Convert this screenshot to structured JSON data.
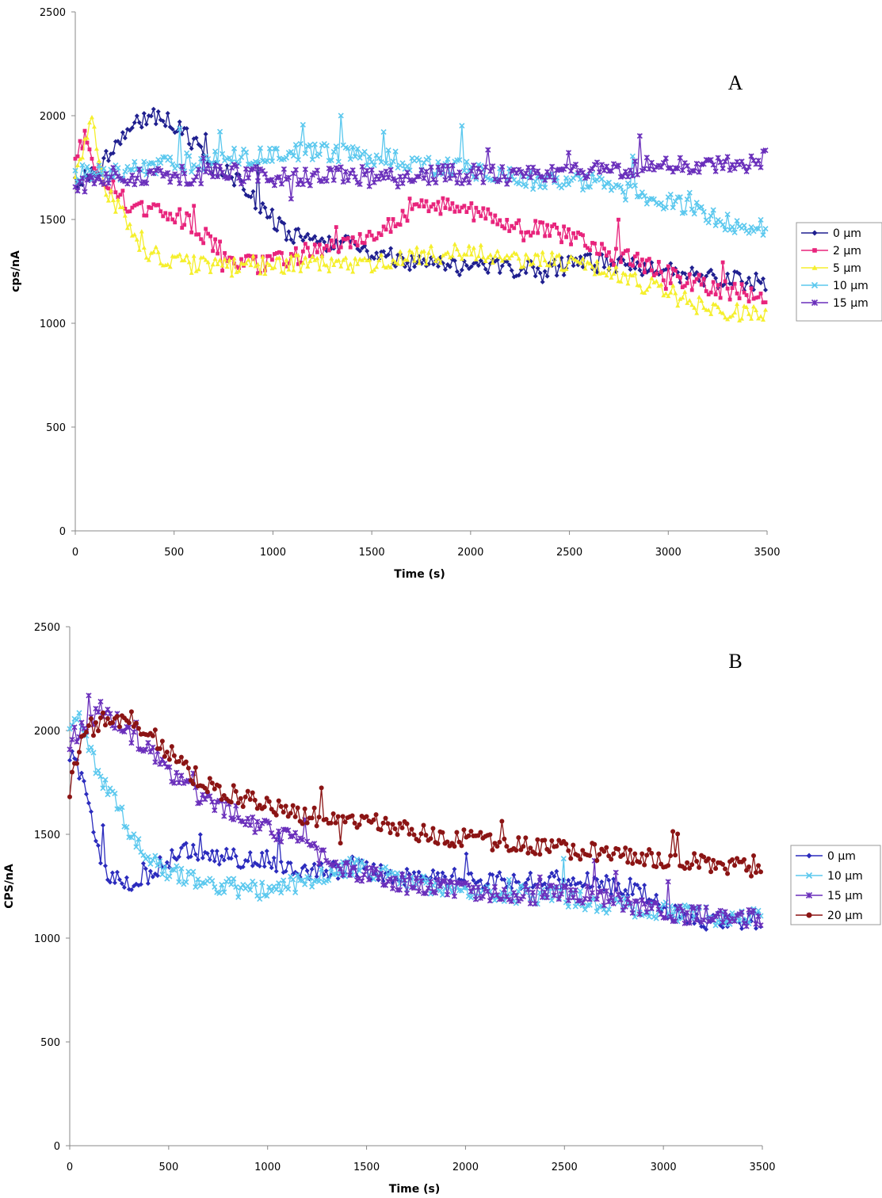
{
  "chart_data": [
    {
      "type": "line",
      "panel_label": "A",
      "xlabel": "Time (s)",
      "ylabel": "cps/nA",
      "xlim": [
        0,
        3500
      ],
      "ylim": [
        0,
        2500
      ],
      "x_ticks": [
        0,
        500,
        1000,
        1500,
        2000,
        2500,
        3000,
        3500
      ],
      "y_ticks": [
        0,
        500,
        1000,
        1500,
        2000,
        2500
      ],
      "grid": false,
      "legend_position": "right",
      "series": [
        {
          "name": "0 µm",
          "color": "#1f1f8f",
          "marker": "diamond",
          "x": [
            0,
            100,
            200,
            300,
            400,
            500,
            600,
            700,
            800,
            900,
            1000,
            1100,
            1200,
            1300,
            1400,
            1500,
            1600,
            1700,
            1800,
            1900,
            2000,
            2100,
            2200,
            2300,
            2400,
            2500,
            2600,
            2700,
            2800,
            2900,
            3000,
            3100,
            3200,
            3300,
            3400,
            3500
          ],
          "y": [
            1690,
            1720,
            1850,
            1960,
            1990,
            1950,
            1870,
            1750,
            1700,
            1600,
            1500,
            1420,
            1390,
            1390,
            1370,
            1340,
            1320,
            1300,
            1290,
            1280,
            1270,
            1270,
            1260,
            1260,
            1270,
            1280,
            1290,
            1290,
            1280,
            1270,
            1250,
            1230,
            1220,
            1210,
            1200,
            1190
          ]
        },
        {
          "name": "2 µm",
          "color": "#e8247c",
          "marker": "square",
          "x": [
            0,
            50,
            100,
            200,
            300,
            400,
            500,
            600,
            700,
            800,
            900,
            1000,
            1100,
            1200,
            1300,
            1400,
            1500,
            1600,
            1700,
            1800,
            1900,
            2000,
            2100,
            2200,
            2300,
            2400,
            2500,
            2600,
            2700,
            2800,
            2900,
            3000,
            3100,
            3200,
            3300,
            3400,
            3500
          ],
          "y": [
            1780,
            1920,
            1760,
            1640,
            1550,
            1540,
            1520,
            1470,
            1380,
            1290,
            1280,
            1290,
            1320,
            1350,
            1370,
            1400,
            1430,
            1480,
            1540,
            1580,
            1560,
            1540,
            1510,
            1480,
            1460,
            1440,
            1420,
            1380,
            1340,
            1310,
            1280,
            1240,
            1210,
            1180,
            1160,
            1140,
            1120
          ]
        },
        {
          "name": "5 µm",
          "color": "#f5ef2d",
          "marker": "triangle",
          "x": [
            0,
            50,
            80,
            150,
            250,
            300,
            400,
            500,
            600,
            700,
            800,
            900,
            1000,
            1100,
            1200,
            1300,
            1400,
            1500,
            1600,
            1700,
            1800,
            1900,
            2000,
            2100,
            2200,
            2300,
            2400,
            2500,
            2600,
            2700,
            2800,
            2900,
            3000,
            3100,
            3200,
            3300,
            3400,
            3500
          ],
          "y": [
            1690,
            1900,
            1990,
            1650,
            1500,
            1400,
            1330,
            1290,
            1280,
            1280,
            1270,
            1280,
            1280,
            1290,
            1290,
            1280,
            1280,
            1290,
            1310,
            1320,
            1330,
            1340,
            1340,
            1330,
            1320,
            1310,
            1300,
            1290,
            1270,
            1240,
            1210,
            1180,
            1150,
            1100,
            1080,
            1060,
            1050,
            1060
          ]
        },
        {
          "name": "10 µm",
          "color": "#5bc8ee",
          "marker": "x",
          "x": [
            0,
            100,
            200,
            300,
            400,
            500,
            600,
            700,
            800,
            900,
            1000,
            1100,
            1200,
            1300,
            1400,
            1500,
            1600,
            1700,
            1800,
            1900,
            2000,
            2100,
            2200,
            2300,
            2400,
            2500,
            2600,
            2700,
            2800,
            2900,
            3000,
            3100,
            3200,
            3300,
            3400,
            3500
          ],
          "y": [
            1720,
            1720,
            1730,
            1740,
            1760,
            1760,
            1770,
            1790,
            1800,
            1810,
            1820,
            1820,
            1830,
            1820,
            1810,
            1800,
            1790,
            1780,
            1760,
            1750,
            1740,
            1720,
            1700,
            1690,
            1690,
            1680,
            1680,
            1660,
            1630,
            1600,
            1580,
            1560,
            1520,
            1490,
            1460,
            1460
          ]
        },
        {
          "name": "15 µm",
          "color": "#6a2fbb",
          "marker": "star",
          "x": [
            0,
            100,
            200,
            300,
            400,
            500,
            600,
            700,
            800,
            900,
            1000,
            1100,
            1200,
            1300,
            1400,
            1500,
            1600,
            1700,
            1800,
            1900,
            2000,
            2100,
            2200,
            2300,
            2400,
            2500,
            2600,
            2700,
            2800,
            2900,
            3000,
            3100,
            3200,
            3300,
            3400,
            3500
          ],
          "y": [
            1640,
            1700,
            1720,
            1710,
            1720,
            1720,
            1710,
            1720,
            1720,
            1710,
            1710,
            1700,
            1700,
            1710,
            1720,
            1700,
            1700,
            1700,
            1710,
            1720,
            1720,
            1720,
            1710,
            1710,
            1720,
            1730,
            1730,
            1740,
            1750,
            1760,
            1760,
            1760,
            1770,
            1770,
            1770,
            1790
          ]
        }
      ]
    },
    {
      "type": "line",
      "panel_label": "B",
      "xlabel": "Time (s)",
      "ylabel": "CPS/nA",
      "xlim": [
        0,
        3500
      ],
      "ylim": [
        0,
        2500
      ],
      "x_ticks": [
        0,
        500,
        1000,
        1500,
        2000,
        2500,
        3000,
        3500
      ],
      "y_ticks": [
        0,
        500,
        1000,
        1500,
        2000,
        2500
      ],
      "grid": false,
      "legend_position": "right",
      "series": [
        {
          "name": "0 µm",
          "color": "#2b2bbd",
          "marker": "diamond",
          "x": [
            0,
            50,
            100,
            150,
            200,
            300,
            400,
            500,
            600,
            700,
            800,
            900,
            1000,
            1100,
            1200,
            1300,
            1400,
            1500,
            1600,
            1700,
            1800,
            1900,
            2000,
            2100,
            2200,
            2300,
            2400,
            2500,
            2600,
            2700,
            2800,
            2900,
            3000,
            3100,
            3200,
            3300,
            3400,
            3500
          ],
          "y": [
            1900,
            1800,
            1600,
            1400,
            1300,
            1250,
            1300,
            1380,
            1420,
            1400,
            1390,
            1370,
            1380,
            1350,
            1330,
            1330,
            1330,
            1330,
            1310,
            1300,
            1300,
            1290,
            1290,
            1280,
            1280,
            1280,
            1280,
            1280,
            1270,
            1260,
            1250,
            1220,
            1150,
            1100,
            1080,
            1080,
            1080,
            1090
          ]
        },
        {
          "name": "10 µm",
          "color": "#5bc8ee",
          "marker": "x",
          "x": [
            0,
            50,
            100,
            200,
            300,
            400,
            500,
            600,
            700,
            800,
            900,
            1000,
            1100,
            1200,
            1300,
            1400,
            1500,
            1600,
            1700,
            1800,
            1900,
            2000,
            2100,
            2200,
            2300,
            2400,
            2500,
            2600,
            2700,
            2800,
            2900,
            3000,
            3100,
            3200,
            3300,
            3400,
            3500
          ],
          "y": [
            2050,
            2100,
            1900,
            1700,
            1530,
            1380,
            1320,
            1290,
            1270,
            1250,
            1230,
            1230,
            1250,
            1270,
            1300,
            1340,
            1330,
            1300,
            1280,
            1260,
            1240,
            1230,
            1220,
            1210,
            1210,
            1200,
            1200,
            1180,
            1160,
            1150,
            1140,
            1130,
            1120,
            1110,
            1100,
            1100,
            1100
          ]
        },
        {
          "name": "15 µm",
          "color": "#6a2fbb",
          "marker": "star",
          "x": [
            0,
            100,
            150,
            200,
            300,
            400,
            500,
            600,
            700,
            800,
            900,
            1000,
            1100,
            1200,
            1300,
            1400,
            1500,
            1600,
            1700,
            1800,
            1900,
            2000,
            2100,
            2200,
            2300,
            2400,
            2500,
            2600,
            2700,
            2800,
            2900,
            3000,
            3100,
            3200,
            3300,
            3400,
            3500
          ],
          "y": [
            1950,
            2050,
            2100,
            2080,
            1980,
            1900,
            1800,
            1720,
            1660,
            1620,
            1570,
            1520,
            1480,
            1440,
            1380,
            1330,
            1300,
            1280,
            1260,
            1250,
            1240,
            1230,
            1220,
            1210,
            1210,
            1210,
            1220,
            1210,
            1190,
            1170,
            1150,
            1130,
            1110,
            1110,
            1110,
            1100,
            1100
          ]
        },
        {
          "name": "20 µm",
          "color": "#8b1414",
          "marker": "circle",
          "x": [
            0,
            50,
            100,
            200,
            300,
            400,
            500,
            600,
            700,
            800,
            900,
            1000,
            1100,
            1200,
            1300,
            1400,
            1500,
            1600,
            1700,
            1800,
            1900,
            2000,
            2100,
            2200,
            2300,
            2400,
            2500,
            2600,
            2700,
            2800,
            2900,
            3000,
            3100,
            3200,
            3300,
            3400,
            3500
          ],
          "y": [
            1720,
            1950,
            2010,
            2060,
            2060,
            1990,
            1900,
            1800,
            1740,
            1700,
            1670,
            1640,
            1610,
            1590,
            1580,
            1570,
            1560,
            1540,
            1520,
            1500,
            1490,
            1480,
            1470,
            1460,
            1450,
            1440,
            1430,
            1420,
            1410,
            1400,
            1390,
            1380,
            1370,
            1360,
            1350,
            1340,
            1330
          ]
        }
      ]
    }
  ]
}
